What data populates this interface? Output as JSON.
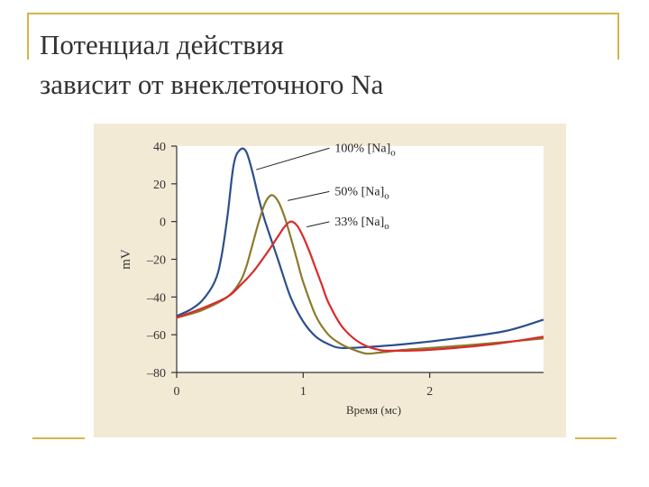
{
  "slide": {
    "title_line1": "Потенциал действия",
    "title_line2": "зависит от внеклеточного Na",
    "accent_color": "#d6b44a",
    "panel_color": "#f3ead6"
  },
  "chart_data": {
    "type": "line",
    "title": "",
    "xlabel": "Время (мс)",
    "ylabel": "mV",
    "xlim": [
      0,
      2.9
    ],
    "ylim": [
      -80,
      40
    ],
    "x_ticks": [
      0,
      1,
      2
    ],
    "y_ticks": [
      40,
      20,
      0,
      -20,
      -40,
      -60,
      -80
    ],
    "y_tick_labels": [
      "40",
      "20",
      "0",
      "–20",
      "–40",
      "–60",
      "–80"
    ],
    "grid": false,
    "legend": "inline labels",
    "series": [
      {
        "name": "100% [Na]o",
        "label_text": "100% [Na]",
        "label_sub": "o",
        "color": "#2c4f8c",
        "label_anchor": [
          1.25,
          37
        ],
        "x": [
          0,
          0.1,
          0.2,
          0.3,
          0.35,
          0.4,
          0.45,
          0.5,
          0.55,
          0.6,
          0.65,
          0.7,
          0.8,
          0.9,
          1.0,
          1.1,
          1.2,
          1.3,
          1.5,
          1.8,
          2.2,
          2.6,
          2.9
        ],
        "y": [
          -50,
          -47,
          -42,
          -32,
          -20,
          2,
          30,
          38,
          37,
          26,
          12,
          0,
          -20,
          -40,
          -53,
          -61,
          -65,
          -67,
          -66.5,
          -65,
          -62,
          -58,
          -52
        ]
      },
      {
        "name": "50% [Na]o",
        "label_text": "50% [Na]",
        "label_sub": "o",
        "color": "#8c7a2e",
        "label_anchor": [
          1.25,
          14
        ],
        "x": [
          0,
          0.2,
          0.4,
          0.5,
          0.55,
          0.6,
          0.65,
          0.7,
          0.75,
          0.8,
          0.85,
          0.9,
          0.95,
          1.0,
          1.1,
          1.2,
          1.3,
          1.4,
          1.5,
          1.6,
          1.8,
          2.0,
          2.4,
          2.9
        ],
        "y": [
          -51,
          -47,
          -40,
          -32,
          -24,
          -12,
          0,
          10,
          14,
          11,
          3,
          -8,
          -20,
          -32,
          -50,
          -60,
          -65,
          -68,
          -70,
          -69.5,
          -68,
          -67,
          -65,
          -62
        ]
      },
      {
        "name": "33% [Na]o",
        "label_text": "33% [Na]",
        "label_sub": "o",
        "color": "#d92b2b",
        "label_anchor": [
          1.25,
          -2
        ],
        "x": [
          0,
          0.2,
          0.4,
          0.5,
          0.6,
          0.7,
          0.8,
          0.85,
          0.9,
          0.95,
          1.0,
          1.05,
          1.1,
          1.15,
          1.2,
          1.3,
          1.4,
          1.5,
          1.6,
          1.7,
          2.0,
          2.5,
          2.9
        ],
        "y": [
          -51,
          -46,
          -40,
          -34,
          -27,
          -18,
          -8,
          -3,
          0,
          -2,
          -8,
          -16,
          -25,
          -34,
          -43,
          -55,
          -62,
          -66,
          -68,
          -68.5,
          -68,
          -65,
          -61
        ]
      }
    ]
  }
}
